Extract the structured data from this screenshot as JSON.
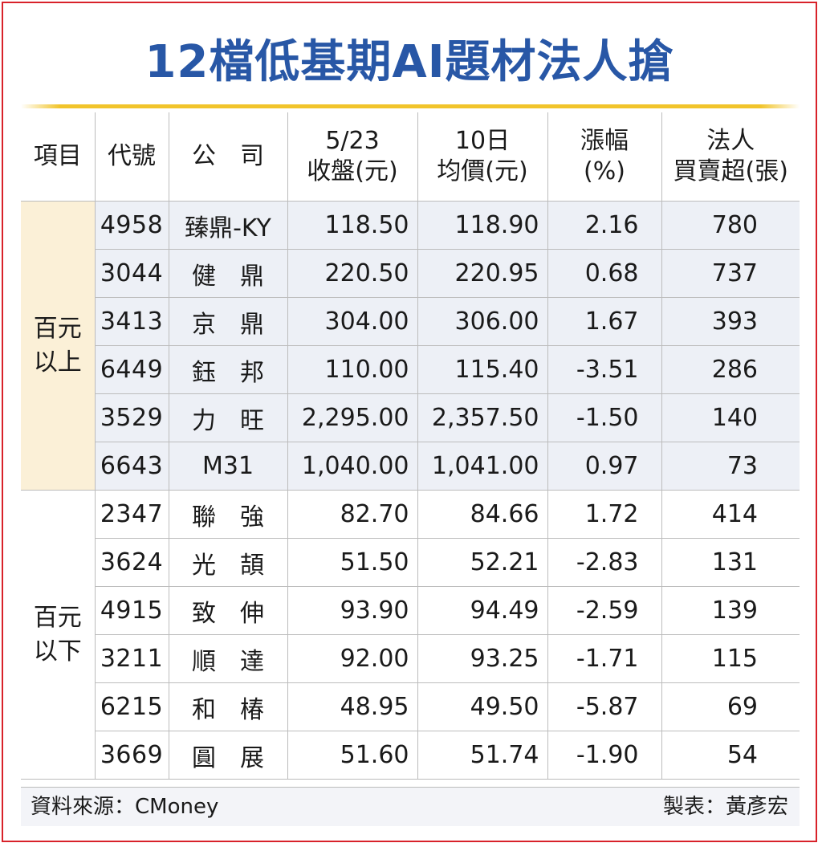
{
  "chart_data": {
    "type": "table",
    "title": "12檔低基期AI題材法人搶",
    "columns": [
      "項目",
      "代號",
      "公　司",
      "5/23\n收盤(元)",
      "10日\n均價(元)",
      "漲幅\n(%)",
      "法人\n買賣超(張)"
    ],
    "groups": [
      {
        "label": "百元\n以上",
        "rows": [
          {
            "code": "4958",
            "name": "臻鼎-KY",
            "close": "118.50",
            "avg10": "118.90",
            "change": "2.16",
            "net": "780"
          },
          {
            "code": "3044",
            "name": "健　鼎",
            "close": "220.50",
            "avg10": "220.95",
            "change": "0.68",
            "net": "737"
          },
          {
            "code": "3413",
            "name": "京　鼎",
            "close": "304.00",
            "avg10": "306.00",
            "change": "1.67",
            "net": "393"
          },
          {
            "code": "6449",
            "name": "鈺　邦",
            "close": "110.00",
            "avg10": "115.40",
            "change": "-3.51",
            "net": "286"
          },
          {
            "code": "3529",
            "name": "力　旺",
            "close": "2,295.00",
            "avg10": "2,357.50",
            "change": "-1.50",
            "net": "140"
          },
          {
            "code": "6643",
            "name": "M31",
            "close": "1,040.00",
            "avg10": "1,041.00",
            "change": "0.97",
            "net": "73"
          }
        ]
      },
      {
        "label": "百元\n以下",
        "rows": [
          {
            "code": "2347",
            "name": "聯　強",
            "close": "82.70",
            "avg10": "84.66",
            "change": "1.72",
            "net": "414"
          },
          {
            "code": "3624",
            "name": "光　頡",
            "close": "51.50",
            "avg10": "52.21",
            "change": "-2.83",
            "net": "131"
          },
          {
            "code": "4915",
            "name": "致　伸",
            "close": "93.90",
            "avg10": "94.49",
            "change": "-2.59",
            "net": "139"
          },
          {
            "code": "3211",
            "name": "順　達",
            "close": "92.00",
            "avg10": "93.25",
            "change": "-1.71",
            "net": "115"
          },
          {
            "code": "6215",
            "name": "和　椿",
            "close": "48.95",
            "avg10": "49.50",
            "change": "-5.87",
            "net": "69"
          },
          {
            "code": "3669",
            "name": "圓　展",
            "close": "51.60",
            "avg10": "51.74",
            "change": "-1.90",
            "net": "54"
          }
        ]
      }
    ]
  },
  "footer": {
    "source": "資料來源：CMoney",
    "maker": "製表：黃彥宏"
  },
  "colors": {
    "title": "#2857a6",
    "frame": "#d8222a",
    "rule": "#f1c42b",
    "group_above_bg": "#fbf0d7",
    "row_above_bg": "#edf0f6"
  }
}
